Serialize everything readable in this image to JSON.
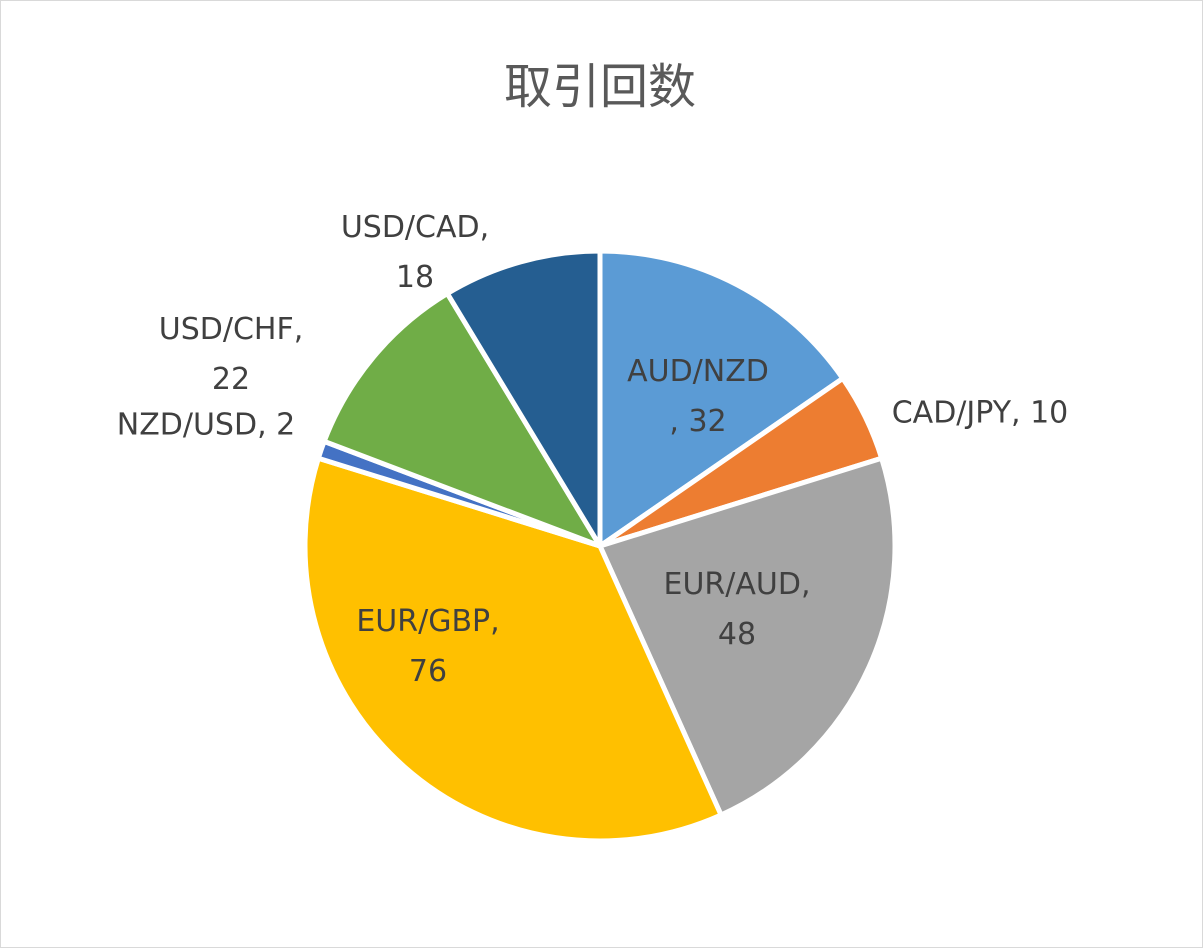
{
  "chart_data": {
    "type": "pie",
    "title": "取引回数",
    "values": [
      32,
      10,
      48,
      76,
      2,
      22,
      18
    ],
    "value_labels": [
      "AUD/NZD, 32",
      "CAD/JPY, 10",
      "EUR/AUD, 48",
      "EUR/GBP, 76",
      "NZD/USD, 2",
      "USD/CHF, 22",
      "USD/CAD, 18"
    ],
    "colors": [
      "#5b9bd5",
      "#ed7d31",
      "#a5a5a5",
      "#ffc000",
      "#4472c4",
      "#70ad47",
      "#255e91"
    ]
  }
}
